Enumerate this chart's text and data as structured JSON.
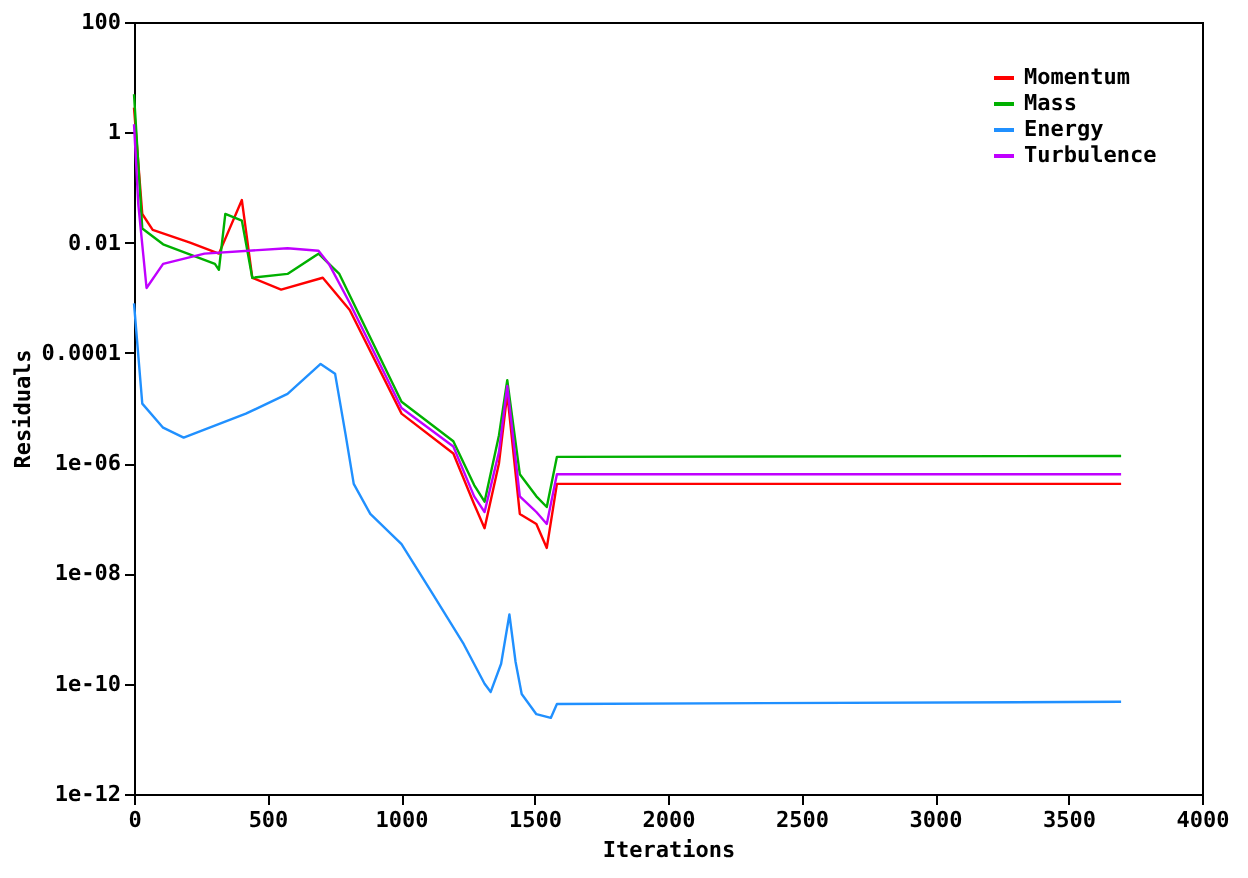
{
  "chart_data": {
    "type": "line",
    "xlabel": "Iterations",
    "ylabel": "Residuals",
    "log": true,
    "legend": "top right",
    "grid": false,
    "xlim": [
      0,
      4000
    ],
    "xticks": [
      0,
      500,
      1000,
      1500,
      2000,
      2500,
      3000,
      3500,
      4000
    ],
    "ylim": [
      1e-12,
      100
    ],
    "yticks": [
      {
        "value": 1e-12,
        "label": "1e-12"
      },
      {
        "value": 1e-10,
        "label": "1e-10"
      },
      {
        "value": 1e-08,
        "label": "1e-08"
      },
      {
        "value": 1e-06,
        "label": "1e-06"
      },
      {
        "value": 0.0001,
        "label": "0.0001"
      },
      {
        "value": 0.01,
        "label": "0.01"
      },
      {
        "value": 1,
        "label": "1"
      },
      {
        "value": 100,
        "label": "100"
      }
    ],
    "series": [
      {
        "name": "Momentum",
        "color": "#ff0000",
        "x": [
          0,
          31,
          70,
          210,
          318,
          404,
          443,
          551,
          707,
          808,
          1002,
          1196,
          1274,
          1313,
          1367,
          1398,
          1445,
          1507,
          1546,
          1584,
          3697
        ],
        "values": [
          2.8,
          0.033,
          0.017,
          0.01,
          0.0063,
          0.059,
          0.0023,
          0.0014,
          0.0023,
          0.0006,
          7.9e-06,
          1.5e-06,
          1.8e-07,
          6.6e-08,
          1e-06,
          1.8e-05,
          1.2e-07,
          7.9e-08,
          2.9e-08,
          4.2e-07,
          4.2e-07
        ]
      },
      {
        "name": "Mass",
        "color": "#00b000",
        "x": [
          0,
          31,
          109,
          303,
          318,
          342,
          404,
          443,
          575,
          691,
          769,
          1002,
          1196,
          1274,
          1313,
          1367,
          1398,
          1445,
          1507,
          1546,
          1584,
          3697
        ],
        "values": [
          4.9,
          0.018,
          0.0093,
          0.0041,
          0.0032,
          0.033,
          0.025,
          0.0023,
          0.0027,
          0.0063,
          0.0027,
          1.3e-05,
          2.5e-06,
          4e-07,
          2e-07,
          3.2e-06,
          3.2e-05,
          6.3e-07,
          2.5e-07,
          1.6e-07,
          1.3e-06,
          1.35e-06
        ]
      },
      {
        "name": "Energy",
        "color": "#2090ff",
        "x": [
          0,
          31,
          109,
          186,
          419,
          575,
          699,
          753,
          792,
          823,
          885,
          1002,
          1118,
          1235,
          1313,
          1336,
          1375,
          1406,
          1429,
          1452,
          1507,
          1561,
          1584,
          3697
        ],
        "values": [
          0.00079,
          1.2e-05,
          4.4e-06,
          2.9e-06,
          7.9e-06,
          1.8e-05,
          6.3e-05,
          4.2e-05,
          3.4e-06,
          4.2e-07,
          1.2e-07,
          3.4e-08,
          4.3e-09,
          5.2e-10,
          1e-10,
          7.1e-11,
          2.3e-10,
          1.8e-09,
          2.5e-10,
          6.5e-11,
          2.8e-11,
          2.4e-11,
          4.3e-11,
          4.7e-11
        ]
      },
      {
        "name": "Turbulence",
        "color": "#c000ff",
        "x": [
          0,
          16,
          47,
          109,
          264,
          575,
          691,
          730,
          808,
          1002,
          1196,
          1274,
          1313,
          1367,
          1398,
          1445,
          1507,
          1546,
          1584,
          3697
        ],
        "values": [
          1.4,
          0.05,
          0.0015,
          0.0041,
          0.0063,
          0.0079,
          0.0071,
          0.0041,
          0.0008,
          1e-05,
          2e-06,
          2.5e-07,
          1.3e-07,
          1.6e-06,
          2.5e-05,
          2.5e-07,
          1.3e-07,
          7.9e-08,
          6.3e-07,
          6.3e-07
        ]
      }
    ]
  }
}
